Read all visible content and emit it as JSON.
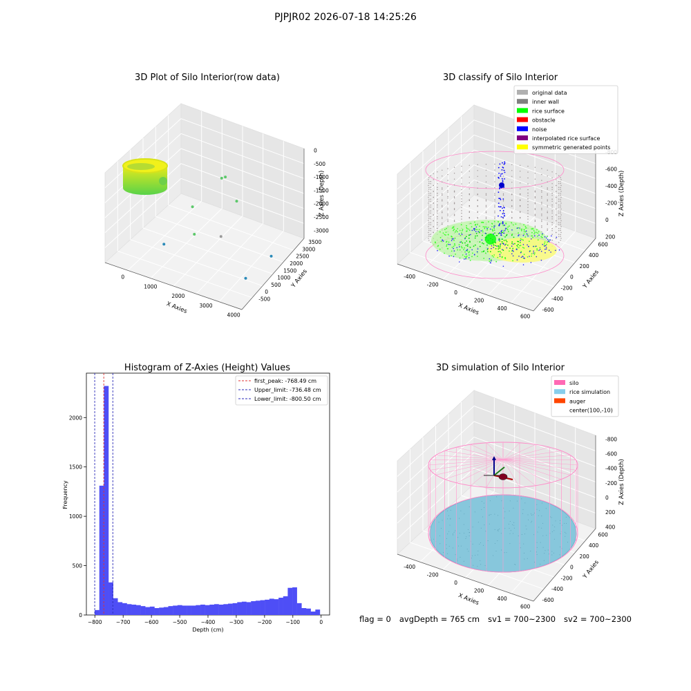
{
  "figure": {
    "suptitle": "PJPJR02 2026-07-18 14:25:26"
  },
  "panel_raw": {
    "title": "3D Plot of Silo Interior(row data)",
    "xlabel": "X Axies",
    "ylabel": "Y Axies",
    "zlabel": "Z Axies (Depth)",
    "xticks": [
      "0",
      "1000",
      "2000",
      "3000",
      "4000"
    ],
    "yticks": [
      "-500",
      "0",
      "500",
      "1000",
      "1500",
      "2000",
      "2500",
      "3000",
      "3500"
    ],
    "zticks": [
      "0",
      "-500",
      "-1000",
      "-1500",
      "-2000",
      "-2500",
      "-3000"
    ],
    "outliers": [
      {
        "x": 1800,
        "y": 2500,
        "z": -1200,
        "color": "#5cc86a"
      },
      {
        "x": 1900,
        "y": 2550,
        "z": -1150,
        "color": "#5cc86a"
      },
      {
        "x": 2400,
        "y": 2300,
        "z": -1700,
        "color": "#5cc86a"
      },
      {
        "x": 1200,
        "y": 1700,
        "z": -2000,
        "color": "#5cc86a"
      },
      {
        "x": 1500,
        "y": 1200,
        "z": -2600,
        "color": "#5cc86a"
      },
      {
        "x": 2300,
        "y": 1400,
        "z": -2500,
        "color": "#9a9a9a"
      },
      {
        "x": 1000,
        "y": 100,
        "z": -2500,
        "color": "#2a8ab8"
      },
      {
        "x": 3800,
        "y": 1800,
        "z": -2900,
        "color": "#2a8ab8"
      },
      {
        "x": 3700,
        "y": 200,
        "z": -2800,
        "color": "#2a8ab8"
      }
    ]
  },
  "panel_classify": {
    "title": "3D classify of Silo Interior",
    "xlabel": "X Axies",
    "ylabel": "Y Axies",
    "zlabel": "Z Axies (Depth)",
    "xticks": [
      "-400",
      "-200",
      "0",
      "200",
      "400",
      "600"
    ],
    "yticks": [
      "-600",
      "-400",
      "-200",
      "0",
      "200",
      "400",
      "600"
    ],
    "zticks": [
      "200",
      "0",
      "-200",
      "-400",
      "-600",
      "-800"
    ],
    "legend": [
      {
        "label": "original data",
        "color": "#b0b0b0"
      },
      {
        "label": "inner wall",
        "color": "#808080"
      },
      {
        "label": "rice surface",
        "color": "#00ff00"
      },
      {
        "label": "obstacle",
        "color": "#ff0000"
      },
      {
        "label": "noise",
        "color": "#0000ff"
      },
      {
        "label": "interpolated rice surface",
        "color": "#800080"
      },
      {
        "label": "symmetric generated points",
        "color": "#ffff00"
      }
    ]
  },
  "chart_data": {
    "type": "bar",
    "title": "Histogram of Z-Axies (Height) Values",
    "xlabel": "Depth (cm)",
    "ylabel": "Frequency",
    "xlim": [
      -830,
      30
    ],
    "ylim": [
      0,
      2450
    ],
    "xticks": [
      -800,
      -700,
      -600,
      -500,
      -400,
      -300,
      -200,
      -100,
      0
    ],
    "yticks": [
      0,
      500,
      1000,
      1500,
      2000
    ],
    "bin_width": 16.25,
    "bin_start": -800.5,
    "values": [
      50,
      1310,
      2320,
      330,
      170,
      130,
      120,
      110,
      105,
      100,
      90,
      80,
      85,
      70,
      75,
      80,
      90,
      95,
      100,
      95,
      95,
      95,
      100,
      105,
      100,
      105,
      110,
      105,
      110,
      115,
      120,
      130,
      135,
      130,
      140,
      145,
      150,
      155,
      165,
      160,
      175,
      190,
      275,
      280,
      120,
      70,
      65,
      35,
      55
    ],
    "bar_color": "#4e4ef6",
    "grid": false,
    "legend_position": "top-right",
    "lines": [
      {
        "label": "first_peak: -768.49 cm",
        "x": -768.49,
        "color": "#e03030"
      },
      {
        "label": "Upper_limit: -736.48 cm",
        "x": -736.48,
        "color": "#2a2ab8"
      },
      {
        "label": "Lower_limit: -800.50 cm",
        "x": -800.5,
        "color": "#2a2ab8"
      }
    ]
  },
  "panel_sim": {
    "title": "3D simulation of Silo Interior",
    "xlabel": "X Axies",
    "ylabel": "Y Axies",
    "zlabel": "Z Axies (Depth)",
    "xticks": [
      "-400",
      "-200",
      "0",
      "200",
      "400",
      "600"
    ],
    "yticks": [
      "-600",
      "-400",
      "-200",
      "0",
      "200",
      "400",
      "600"
    ],
    "zticks": [
      "400",
      "200",
      "0",
      "-200",
      "-400",
      "-600",
      "-800"
    ],
    "legend": [
      {
        "label": "silo",
        "color": "#ff69b4"
      },
      {
        "label": "rice simulation",
        "color": "#87ceeb"
      },
      {
        "label": "auger",
        "color": "#ff4500"
      },
      {
        "label": "center(100,-10)",
        "color": ""
      }
    ]
  },
  "footer": {
    "flag": "flag = 0",
    "avg": "avgDepth = 765 cm",
    "sv1": "sv1 = 700~2300",
    "sv2": "sv2 = 700~2300"
  }
}
